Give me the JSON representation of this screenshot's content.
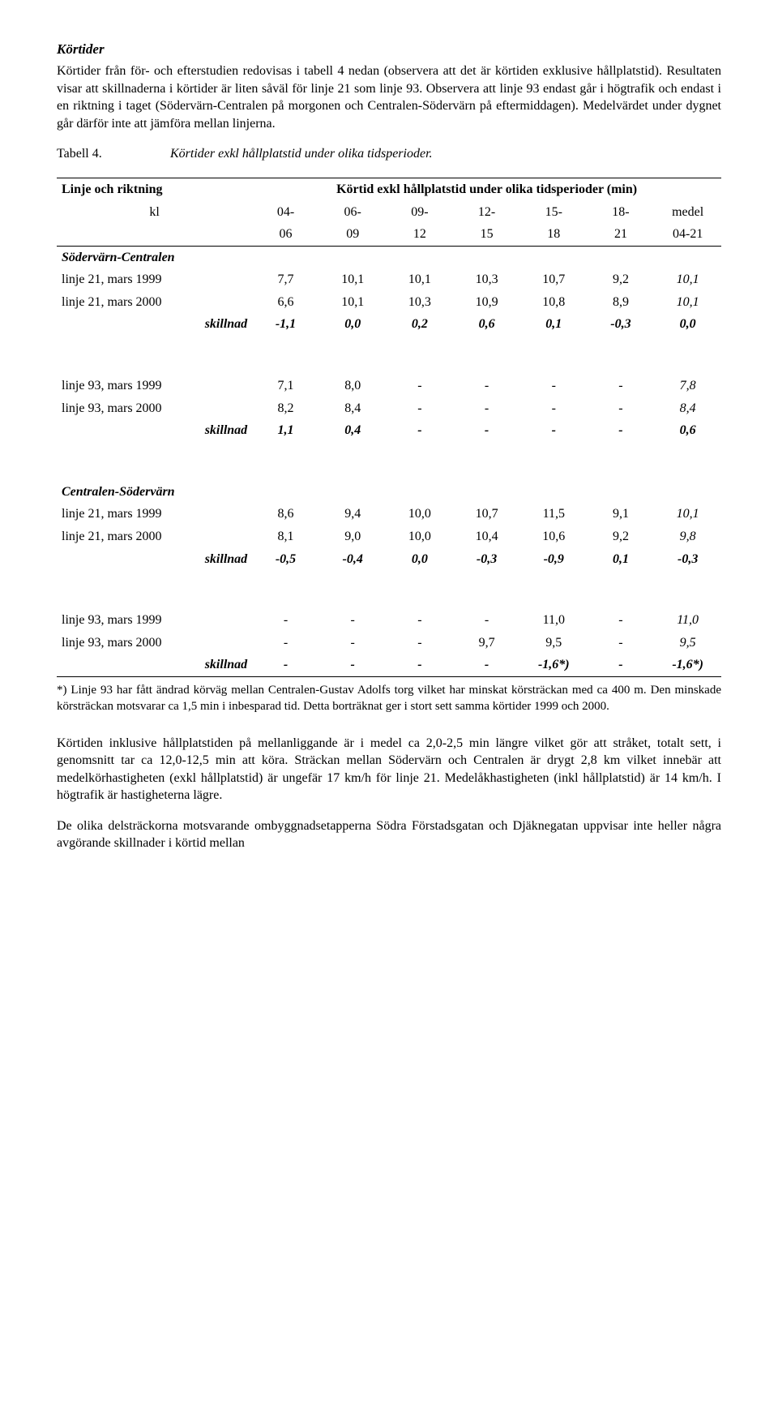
{
  "heading": "Körtider",
  "para1": "Körtider från för- och efterstudien redovisas i tabell 4 nedan (observera att det är körtiden exklusive hållplatstid). Resultaten visar att skillnaderna i körtider är liten såväl för linje 21 som linje 93. Observera att linje 93 endast går i högtrafik och endast i en riktning i taget (Södervärn-Centralen på morgonen och Centralen-Södervärn på eftermiddagen). Medelvärdet under dygnet går därför inte att jämföra mellan linjerna.",
  "tabell_label": "Tabell 4.",
  "tabell_caption": "Körtider exkl hållplatstid under olika tidsperioder.",
  "hdr": {
    "col1": "Linje och riktning",
    "col_span": "Körtid exkl hållplatstid under olika tidsperioder (min)",
    "kl": "kl",
    "c1a": "04-",
    "c1b": "06",
    "c2a": "06-",
    "c2b": "09",
    "c3a": "09-",
    "c3b": "12",
    "c4a": "12-",
    "c4b": "15",
    "c5a": "15-",
    "c5b": "18",
    "c6a": "18-",
    "c6b": "21",
    "c7a": "medel",
    "c7b": "04-21"
  },
  "sec1": {
    "title": "Södervärn-Centralen",
    "r1": {
      "label": "linje 21, mars 1999",
      "v": [
        "7,7",
        "10,1",
        "10,1",
        "10,3",
        "10,7",
        "9,2",
        "10,1"
      ]
    },
    "r2": {
      "label": "linje 21, mars 2000",
      "v": [
        "6,6",
        "10,1",
        "10,3",
        "10,9",
        "10,8",
        "8,9",
        "10,1"
      ]
    },
    "r3": {
      "label": "skillnad",
      "v": [
        "-1,1",
        "0,0",
        "0,2",
        "0,6",
        "0,1",
        "-0,3",
        "0,0"
      ]
    },
    "r4": {
      "label": "linje 93, mars 1999",
      "v": [
        "7,1",
        "8,0",
        "-",
        "-",
        "-",
        "-",
        "7,8"
      ]
    },
    "r5": {
      "label": "linje 93, mars 2000",
      "v": [
        "8,2",
        "8,4",
        "-",
        "-",
        "-",
        "-",
        "8,4"
      ]
    },
    "r6": {
      "label": "skillnad",
      "v": [
        "1,1",
        "0,4",
        "-",
        "-",
        "-",
        "-",
        "0,6"
      ]
    }
  },
  "sec2": {
    "title": "Centralen-Södervärn",
    "r1": {
      "label": "linje 21, mars 1999",
      "v": [
        "8,6",
        "9,4",
        "10,0",
        "10,7",
        "11,5",
        "9,1",
        "10,1"
      ]
    },
    "r2": {
      "label": "linje 21, mars 2000",
      "v": [
        "8,1",
        "9,0",
        "10,0",
        "10,4",
        "10,6",
        "9,2",
        "9,8"
      ]
    },
    "r3": {
      "label": "skillnad",
      "v": [
        "-0,5",
        "-0,4",
        "0,0",
        "-0,3",
        "-0,9",
        "0,1",
        "-0,3"
      ]
    },
    "r4": {
      "label": "linje 93, mars 1999",
      "v": [
        "-",
        "-",
        "-",
        "-",
        "11,0",
        "-",
        "11,0"
      ]
    },
    "r5": {
      "label": "linje 93, mars 2000",
      "v": [
        "-",
        "-",
        "-",
        "9,7",
        "9,5",
        "-",
        "9,5"
      ]
    },
    "r6": {
      "label": "skillnad",
      "v": [
        "-",
        "-",
        "-",
        "-",
        "-1,6*)",
        "-",
        "-1,6*)"
      ]
    }
  },
  "note": "*) Linje 93 har fått ändrad körväg mellan Centralen-Gustav Adolfs torg vilket har minskat körsträckan med ca 400 m. Den minskade körsträckan motsvarar ca 1,5 min i inbesparad tid. Detta borträknat ger i stort sett samma körtider 1999 och 2000.",
  "para2": "Körtiden inklusive hållplatstiden på mellanliggande är i medel ca 2,0-2,5 min längre vilket gör att stråket, totalt sett, i genomsnitt tar ca 12,0-12,5 min att köra. Sträckan mellan Södervärn och Centralen är drygt 2,8 km vilket innebär att medelkörhastigheten (exkl hållplatstid) är ungefär 17 km/h för linje 21. Medelåkhastigheten (inkl hållplatstid) är 14 km/h. I högtrafik är hastigheterna lägre.",
  "para3": "De olika delsträckorna motsvarande ombyggnadsetapperna Södra Förstadsgatan och Djäknegatan uppvisar inte heller några avgörande skillnader i körtid mellan"
}
